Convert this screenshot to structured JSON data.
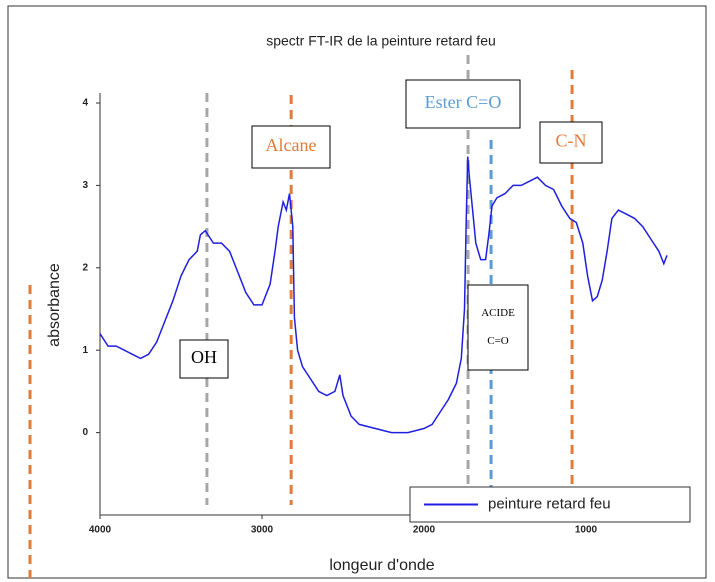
{
  "chart_data": {
    "type": "line",
    "title": "spectr FT-IR de la peinture retard feu",
    "x_label": "longeur d'onde",
    "y_label": "absorbance",
    "xlim": [
      4000,
      500
    ],
    "ylim": [
      -1,
      4
    ],
    "xticks": [
      4000,
      3000,
      2000,
      1000
    ],
    "yticks": [
      0,
      1,
      2,
      3,
      4
    ],
    "grid": false,
    "legend": "lower right",
    "series": [
      {
        "name": "peinture retard feu",
        "color": "#1f1fe0",
        "x": [
          4000,
          3950,
          3900,
          3850,
          3800,
          3750,
          3700,
          3650,
          3600,
          3550,
          3500,
          3450,
          3400,
          3380,
          3350,
          3300,
          3250,
          3200,
          3150,
          3100,
          3050,
          3000,
          2950,
          2920,
          2900,
          2870,
          2850,
          2830,
          2810,
          2800,
          2780,
          2750,
          2700,
          2650,
          2600,
          2550,
          2520,
          2500,
          2450,
          2400,
          2300,
          2200,
          2100,
          2000,
          1950,
          1900,
          1850,
          1800,
          1770,
          1750,
          1740,
          1730,
          1720,
          1700,
          1680,
          1650,
          1620,
          1600,
          1580,
          1550,
          1500,
          1450,
          1400,
          1350,
          1300,
          1250,
          1200,
          1150,
          1100,
          1060,
          1020,
          990,
          960,
          930,
          900,
          870,
          840,
          800,
          750,
          700,
          650,
          600,
          550,
          520,
          500
        ],
        "values": [
          1.2,
          1.05,
          1.05,
          1.0,
          0.95,
          0.9,
          0.95,
          1.1,
          1.35,
          1.6,
          1.9,
          2.1,
          2.2,
          2.4,
          2.45,
          2.3,
          2.3,
          2.2,
          1.95,
          1.7,
          1.55,
          1.55,
          1.8,
          2.2,
          2.5,
          2.8,
          2.7,
          2.9,
          2.5,
          1.4,
          1.0,
          0.8,
          0.65,
          0.5,
          0.45,
          0.5,
          0.7,
          0.45,
          0.2,
          0.1,
          0.05,
          0.0,
          0.0,
          0.05,
          0.1,
          0.25,
          0.4,
          0.6,
          0.9,
          1.5,
          2.5,
          3.35,
          3.1,
          2.7,
          2.3,
          2.1,
          2.1,
          2.4,
          2.75,
          2.85,
          2.9,
          3.0,
          3.0,
          3.05,
          3.1,
          3.0,
          2.95,
          2.75,
          2.6,
          2.55,
          2.3,
          1.9,
          1.6,
          1.65,
          1.85,
          2.2,
          2.6,
          2.7,
          2.65,
          2.6,
          2.5,
          2.35,
          2.2,
          2.05,
          2.15
        ]
      }
    ],
    "annotations": [
      {
        "lines": [
          "OH"
        ],
        "x": 3340,
        "color": "#a6a6a6",
        "text_color": "#000000"
      },
      {
        "lines": [
          "Alcane"
        ],
        "x": 2820,
        "color": "#e07b39",
        "text_color": "#e07b39"
      },
      {
        "lines": [
          "Ester C=O"
        ],
        "x": 1728,
        "color": "#a6a6a6",
        "text_color": "#5b9bd5"
      },
      {
        "lines": [
          "ACIDE",
          "C=O"
        ],
        "x": 1586,
        "color": "#5b9bd5",
        "text_color": "#000000"
      },
      {
        "lines": [
          "C-N"
        ],
        "x": 1086,
        "color": "#e07b39",
        "text_color": "#e07b39"
      }
    ]
  }
}
